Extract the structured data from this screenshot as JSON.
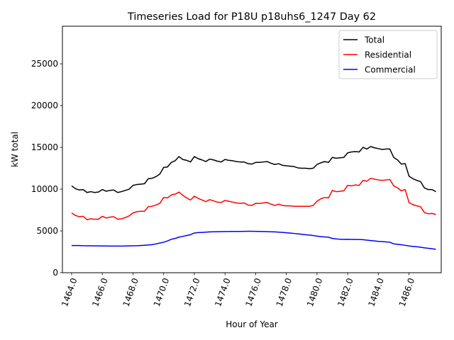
{
  "chart_data": {
    "type": "line",
    "title": "Timeseries Load for P18U p18uhs6_1247  Day 62",
    "xlabel": "Hour of Year",
    "ylabel": "kW total",
    "xlim": [
      1463.4,
      1488.1
    ],
    "ylim": [
      0,
      29500
    ],
    "xticks": [
      1464,
      1466,
      1468,
      1470,
      1472,
      1474,
      1476,
      1478,
      1480,
      1482,
      1484,
      1486
    ],
    "xtick_labels": [
      "1464.0",
      "1466.0",
      "1468.0",
      "1470.0",
      "1472.0",
      "1474.0",
      "1476.0",
      "1478.0",
      "1480.0",
      "1482.0",
      "1484.0",
      "1486.0"
    ],
    "yticks": [
      0,
      5000,
      10000,
      15000,
      20000,
      25000
    ],
    "ytick_labels": [
      "0",
      "5000",
      "10000",
      "15000",
      "20000",
      "25000"
    ],
    "legend_position": "top-right",
    "x_start": 1464,
    "x_step": 0.25,
    "series": [
      {
        "name": "Total",
        "color": "#000000",
        "values": [
          10400,
          10050,
          9900,
          9950,
          9600,
          9700,
          9600,
          9650,
          9950,
          9750,
          9850,
          9900,
          9600,
          9700,
          9850,
          10000,
          10450,
          10550,
          10600,
          10650,
          11250,
          11300,
          11500,
          11800,
          12600,
          12650,
          13200,
          13400,
          13900,
          13550,
          13450,
          13250,
          13900,
          13650,
          13500,
          13300,
          13600,
          13500,
          13350,
          13250,
          13550,
          13450,
          13400,
          13300,
          13250,
          13250,
          13050,
          13000,
          13200,
          13200,
          13250,
          13300,
          13100,
          12950,
          13050,
          12850,
          12800,
          12750,
          12700,
          12550,
          12500,
          12500,
          12450,
          12500,
          12950,
          13150,
          13300,
          13200,
          13800,
          13700,
          13750,
          13800,
          14350,
          14450,
          14500,
          14450,
          15000,
          14800,
          15100,
          14950,
          14850,
          14750,
          14800,
          14800,
          13800,
          13500,
          13000,
          13050,
          11550,
          11250,
          11050,
          10900,
          10150,
          9950,
          9950,
          9700
        ]
      },
      {
        "name": "Residential",
        "color": "#ff0000",
        "values": [
          7150,
          6850,
          6700,
          6750,
          6350,
          6450,
          6400,
          6400,
          6750,
          6550,
          6650,
          6700,
          6400,
          6450,
          6600,
          6800,
          7150,
          7300,
          7350,
          7350,
          7900,
          7950,
          8100,
          8300,
          9000,
          8950,
          9300,
          9400,
          9650,
          9250,
          8950,
          8700,
          9150,
          8900,
          8700,
          8500,
          8750,
          8600,
          8450,
          8400,
          8650,
          8550,
          8450,
          8350,
          8300,
          8350,
          8100,
          8050,
          8300,
          8300,
          8350,
          8400,
          8200,
          8050,
          8200,
          8050,
          8000,
          8000,
          7950,
          7950,
          7950,
          7950,
          7950,
          8050,
          8550,
          8850,
          9000,
          8950,
          9850,
          9700,
          9750,
          9800,
          10450,
          10400,
          10500,
          10450,
          11050,
          10950,
          11300,
          11200,
          11100,
          11050,
          11100,
          11150,
          10400,
          10150,
          9800,
          9950,
          8400,
          8150,
          8000,
          7900,
          7200,
          7050,
          7100,
          6950
        ]
      },
      {
        "name": "Commercial",
        "color": "#0000ff",
        "values": [
          3250,
          3250,
          3250,
          3230,
          3220,
          3220,
          3210,
          3210,
          3200,
          3200,
          3190,
          3190,
          3190,
          3190,
          3200,
          3210,
          3220,
          3230,
          3250,
          3280,
          3320,
          3360,
          3450,
          3550,
          3650,
          3800,
          4000,
          4100,
          4250,
          4350,
          4450,
          4550,
          4750,
          4800,
          4820,
          4850,
          4880,
          4900,
          4910,
          4920,
          4930,
          4930,
          4940,
          4940,
          4940,
          4950,
          4960,
          4960,
          4950,
          4940,
          4930,
          4920,
          4900,
          4880,
          4850,
          4820,
          4780,
          4750,
          4700,
          4650,
          4600,
          4550,
          4500,
          4450,
          4380,
          4320,
          4280,
          4250,
          4100,
          4050,
          4000,
          3980,
          3990,
          3980,
          3970,
          3970,
          3950,
          3900,
          3850,
          3800,
          3750,
          3720,
          3690,
          3650,
          3450,
          3400,
          3350,
          3280,
          3200,
          3150,
          3100,
          3050,
          2980,
          2920,
          2870,
          2800
        ]
      }
    ]
  }
}
